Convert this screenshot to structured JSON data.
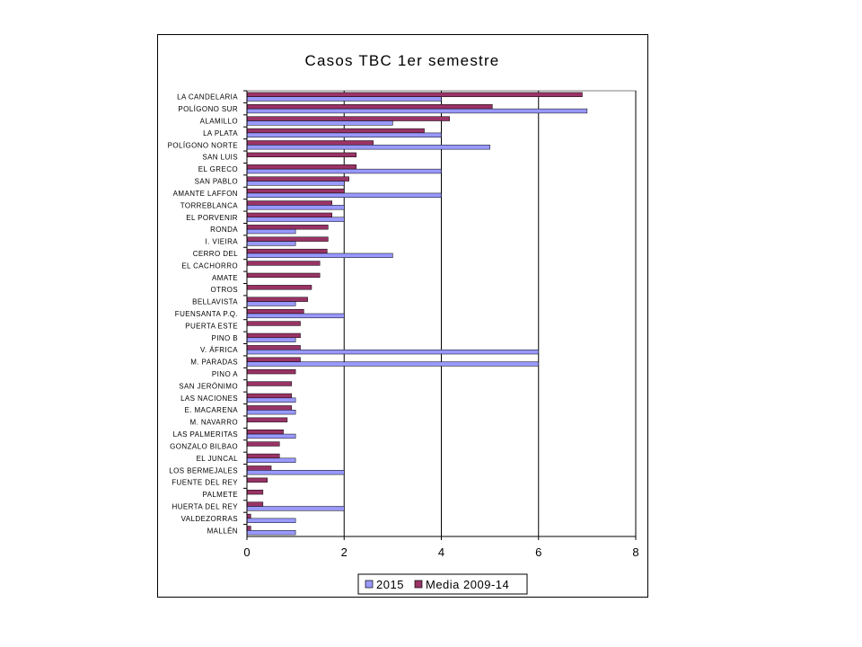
{
  "chart_data": {
    "type": "bar",
    "orientation": "horizontal",
    "title": "Casos TBC 1er semestre",
    "xlabel": "",
    "ylabel": "",
    "xlim": [
      0,
      8
    ],
    "xticks": [
      0,
      2,
      4,
      6,
      8
    ],
    "grid": "vertical",
    "legend_position": "bottom",
    "categories": [
      "LA CANDELARIA",
      "POLÍGONO SUR",
      "ALAMILLO",
      "LA PLATA",
      "POLÍGONO NORTE",
      "SAN LUIS",
      "EL GRECO",
      "SAN PABLO",
      "AMANTE LAFFON",
      "TORREBLANCA",
      "EL PORVENIR",
      "RONDA",
      "I. VIEIRA",
      "CERRO DEL",
      "EL CACHORRO",
      "AMATE",
      "OTROS",
      "BELLAVISTA",
      "FUENSANTA P.Q.",
      "PUERTA ESTE",
      "PINO B",
      "V. ÁFRICA",
      "M. PARADAS",
      "PINO A",
      "SAN JERÓNIMO",
      "LAS NACIONES",
      "E. MACARENA",
      "M. NAVARRO",
      "LAS PALMERITAS",
      "GONZALO BILBAO",
      "EL JUNCAL",
      "LOS BERMEJALES",
      "FUENTE DEL REY",
      "PALMETE",
      "HUERTA DEL REY",
      "VALDEZORRAS",
      "MALLÉN"
    ],
    "series": [
      {
        "name": "2015",
        "color": "#9999ff",
        "values": [
          4,
          7,
          3,
          4,
          5,
          0,
          4,
          2,
          4,
          2,
          2,
          1,
          1,
          3,
          0,
          0,
          0,
          1,
          2,
          0,
          1,
          6,
          6,
          0,
          0,
          1,
          1,
          0,
          1,
          0,
          1,
          2,
          0,
          0,
          2,
          1,
          1
        ]
      },
      {
        "name": "Media 2009-14",
        "color": "#993366",
        "values": [
          6.9,
          5.05,
          4.17,
          3.65,
          2.6,
          2.25,
          2.25,
          2.1,
          2,
          1.75,
          1.75,
          1.67,
          1.67,
          1.65,
          1.5,
          1.5,
          1.33,
          1.25,
          1.17,
          1.1,
          1.1,
          1.1,
          1.1,
          1,
          0.92,
          0.92,
          0.92,
          0.83,
          0.75,
          0.67,
          0.67,
          0.5,
          0.42,
          0.33,
          0.33,
          0.08,
          0.08
        ]
      }
    ]
  }
}
